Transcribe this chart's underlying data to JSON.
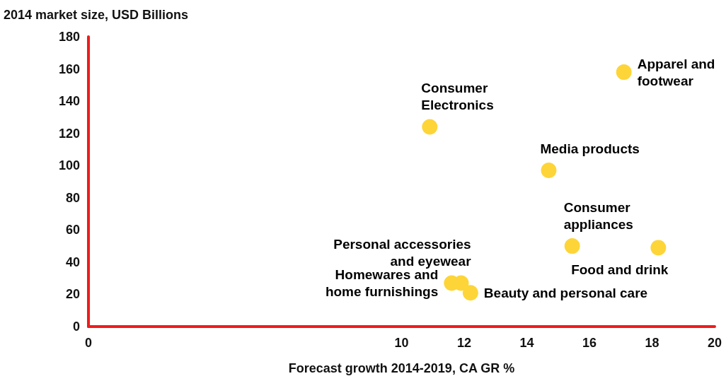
{
  "chart_data": {
    "type": "scatter",
    "xlabel": "Forecast growth 2014-2019, CA GR %",
    "ylabel": "2014 market size, USD Billions",
    "x": [
      10.9,
      17.1,
      14.7,
      15.45,
      18.2,
      11.6,
      11.9,
      12.2
    ],
    "values": [
      124,
      158,
      97,
      50,
      49,
      27,
      27,
      21
    ],
    "color": "#fdd538",
    "marker": "circle",
    "annotations": [
      {
        "text": "Consumer\nElectronics",
        "x": 10.9,
        "y": 124
      },
      {
        "text": "Apparel and\nfootwear",
        "x": 17.1,
        "y": 158
      },
      {
        "text": "Media products",
        "x": 14.7,
        "y": 97
      },
      {
        "text": "Consumer\nappliances",
        "x": 15.45,
        "y": 50
      },
      {
        "text": "Food and drink",
        "x": 18.2,
        "y": 49
      },
      {
        "text": "Homewares and\nhome furnishings",
        "x": 11.6,
        "y": 27
      },
      {
        "text": "Personal accessories\nand eyewear",
        "x": 11.9,
        "y": 27
      },
      {
        "text": "Beauty and personal care",
        "x": 12.2,
        "y": 21
      }
    ],
    "xlim": [
      0,
      20
    ],
    "xticks": [
      0,
      10,
      12,
      14,
      16,
      18,
      20
    ],
    "ylim": [
      0,
      180
    ],
    "yticks": [
      0,
      20,
      40,
      60,
      80,
      100,
      120,
      140,
      160,
      180
    ],
    "grid": false
  }
}
